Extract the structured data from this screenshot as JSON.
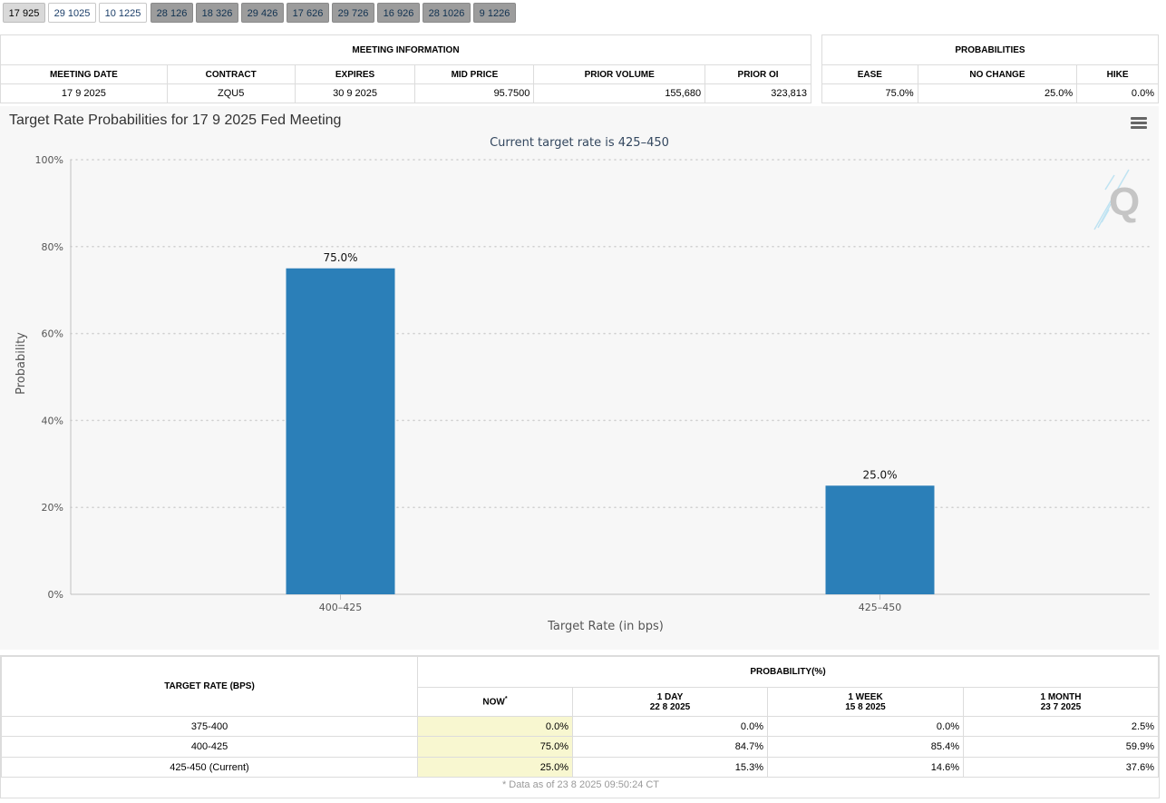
{
  "tabs": [
    {
      "label": "17 925",
      "state": "active"
    },
    {
      "label": "29 1025",
      "state": "white"
    },
    {
      "label": "10 1225",
      "state": "white"
    },
    {
      "label": "28 126",
      "state": "gray"
    },
    {
      "label": "18 326",
      "state": "gray"
    },
    {
      "label": "29 426",
      "state": "gray"
    },
    {
      "label": "17 626",
      "state": "gray"
    },
    {
      "label": "29 726",
      "state": "gray"
    },
    {
      "label": "16 926",
      "state": "gray"
    },
    {
      "label": "28 1026",
      "state": "gray"
    },
    {
      "label": "9 1226",
      "state": "gray"
    }
  ],
  "meeting_info": {
    "header": "MEETING INFORMATION",
    "columns": [
      "MEETING DATE",
      "CONTRACT",
      "EXPIRES",
      "MID PRICE",
      "PRIOR VOLUME",
      "PRIOR OI"
    ],
    "row": [
      "17 9 2025",
      "ZQU5",
      "30 9 2025",
      "95.7500",
      "155,680",
      "323,813"
    ]
  },
  "probabilities": {
    "header": "PROBABILITIES",
    "columns": [
      "EASE",
      "NO CHANGE",
      "HIKE"
    ],
    "row": [
      "75.0%",
      "25.0%",
      "0.0%"
    ]
  },
  "chart": {
    "title": "Target Rate Probabilities for 17 9 2025 Fed Meeting",
    "subtitle": "Current target rate is 425–450"
  },
  "chart_data": {
    "type": "bar",
    "categories": [
      "400–425",
      "425–450"
    ],
    "values": [
      75.0,
      25.0
    ],
    "data_labels": [
      "75.0%",
      "25.0%"
    ],
    "xlabel": "Target Rate (in bps)",
    "ylabel": "Probability",
    "ylim": [
      0,
      100
    ],
    "yticks": [
      "0%",
      "20%",
      "40%",
      "60%",
      "80%",
      "100%"
    ],
    "bar_color": "#2b7fb8",
    "grid": true
  },
  "prob_table": {
    "target_header": "TARGET RATE (BPS)",
    "prob_header": "PROBABILITY(%)",
    "subheaders": [
      {
        "line1": "NOW",
        "sup": "*",
        "line2": ""
      },
      {
        "line1": "1 DAY",
        "line2": "22 8 2025"
      },
      {
        "line1": "1 WEEK",
        "line2": "15 8 2025"
      },
      {
        "line1": "1 MONTH",
        "line2": "23 7 2025"
      }
    ],
    "rows": [
      {
        "rate": "375-400",
        "now": "0.0%",
        "day": "0.0%",
        "week": "0.0%",
        "month": "2.5%"
      },
      {
        "rate": "400-425",
        "now": "75.0%",
        "day": "84.7%",
        "week": "85.4%",
        "month": "59.9%"
      },
      {
        "rate": "425-450 (Current)",
        "now": "25.0%",
        "day": "15.3%",
        "week": "14.6%",
        "month": "37.6%"
      }
    ],
    "footnote": "* Data as of 23 8 2025 09:50:24 CT"
  }
}
